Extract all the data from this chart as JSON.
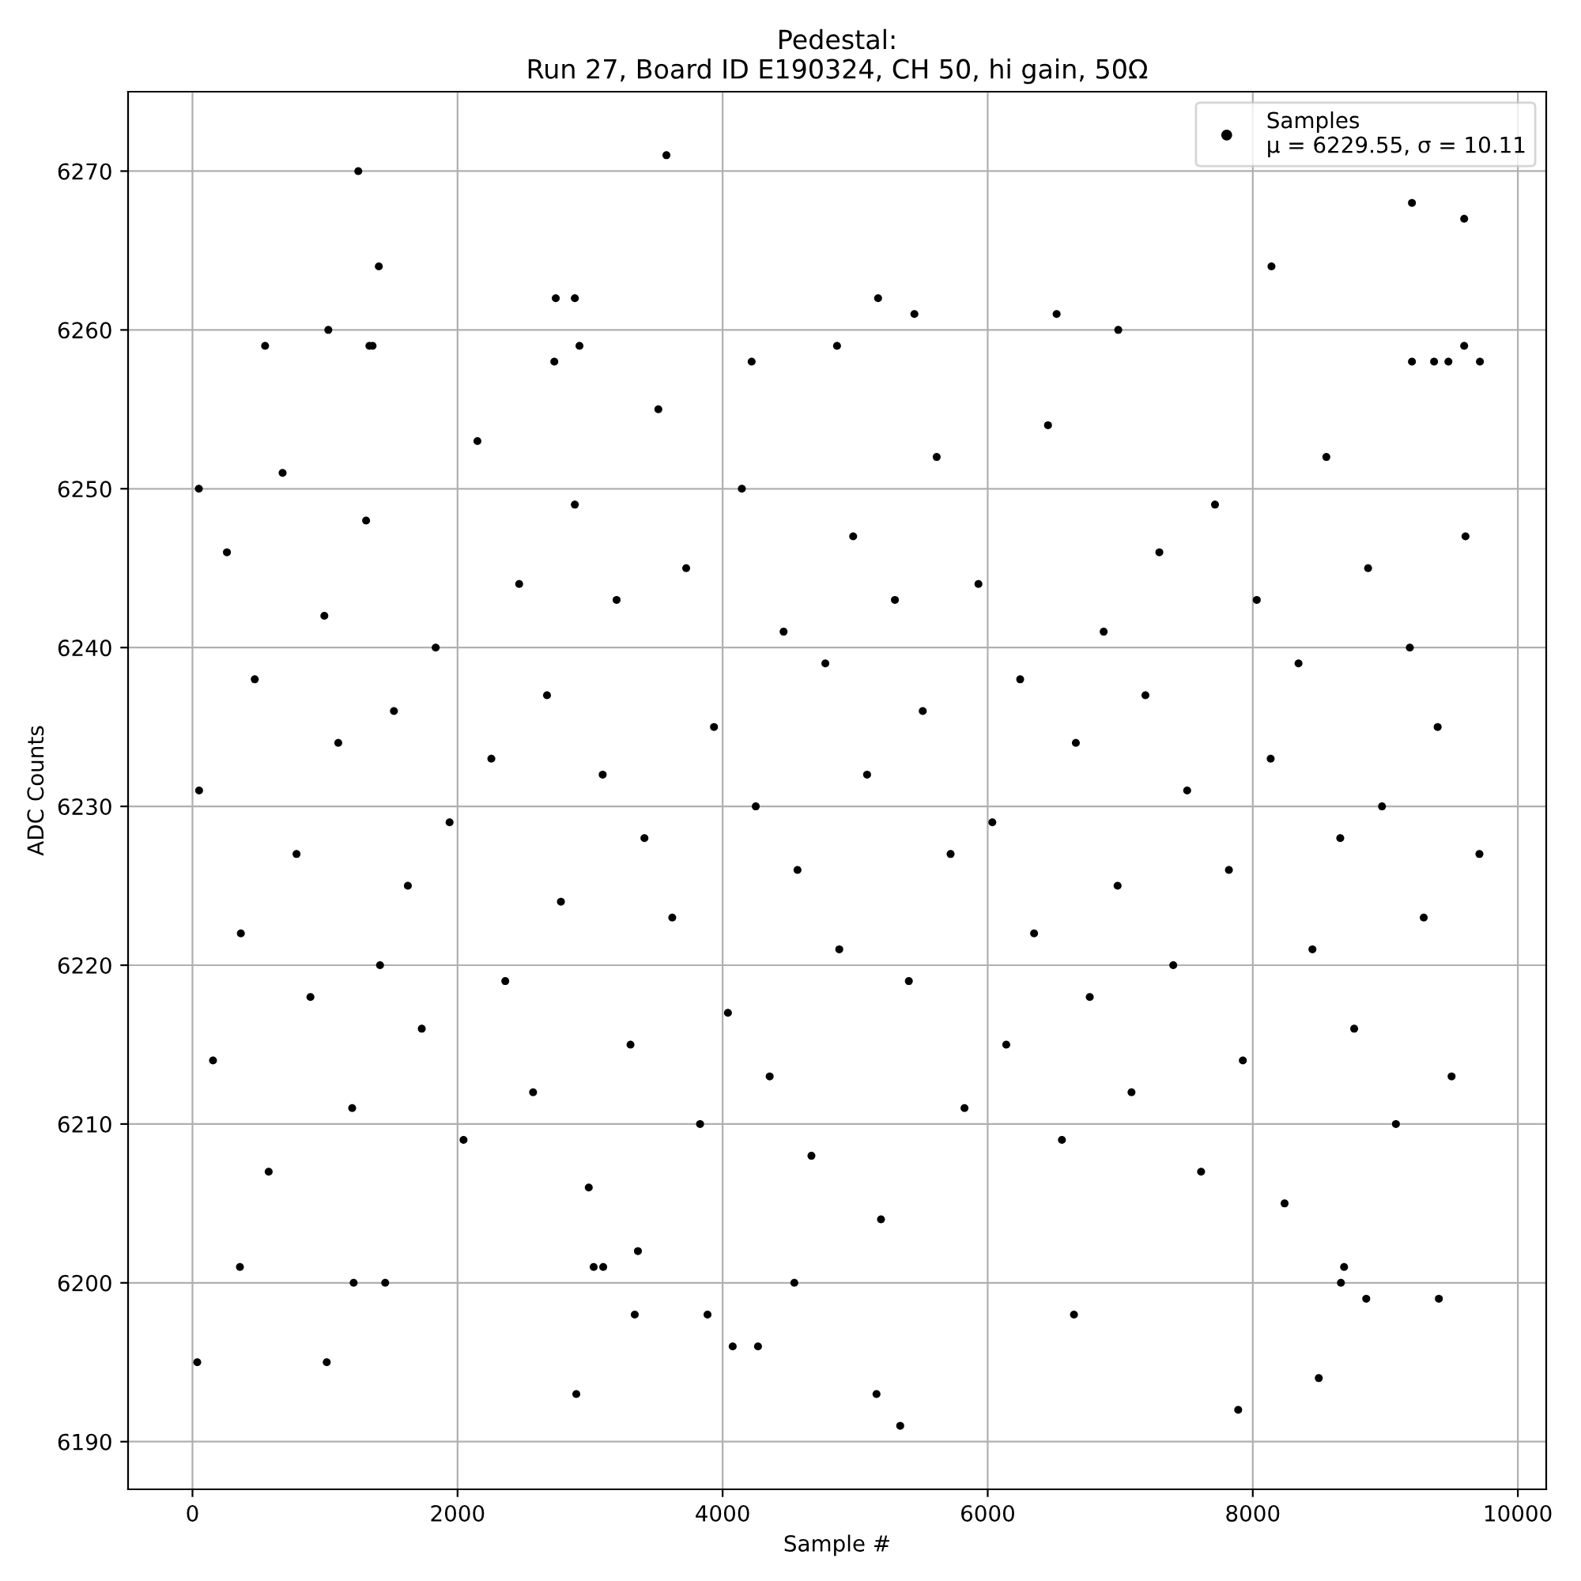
{
  "chart_data": {
    "type": "scatter",
    "title": "Pedestal:",
    "subtitle": "Run 27, Board ID E190324, CH 50, hi gain, 50Ω",
    "xlabel": "Sample #",
    "ylabel": "ADC Counts",
    "xlim": [
      -486,
      10214
    ],
    "ylim": [
      6187,
      6275
    ],
    "xticks": [
      0,
      2000,
      4000,
      6000,
      8000,
      10000
    ],
    "yticks": [
      6190,
      6200,
      6210,
      6220,
      6230,
      6240,
      6250,
      6260,
      6270
    ],
    "grid": true,
    "legend": "top right",
    "marker": "circle",
    "series": [
      {
        "name": "Samples\nμ = 6229.55, σ = 10.11",
        "color": "#000000",
        "x": [
          36,
          1013,
          1216,
          1454,
          2896,
          3337,
          3886,
          4076,
          4267,
          4541,
          358,
          3027,
          3099,
          3361,
          5161,
          5340,
          6651,
          7890,
          8498,
          8665,
          8689,
          8856,
          9404,
          1251,
          1406,
          3576,
          2741,
          2885,
          1025,
          548,
          1335,
          1359,
          2920,
          2730,
          4219,
          5173,
          5447,
          6520,
          6985,
          8141,
          9201,
          9595,
          9595,
          4863,
          9201,
          9368,
          9476,
          9714,
          48,
          50,
          155,
          260,
          365,
          470,
          575,
          680,
          785,
          890,
          995,
          1100,
          1205,
          1310,
          1415,
          1520,
          1625,
          1730,
          1835,
          1940,
          2045,
          2150,
          2255,
          2360,
          2465,
          2570,
          2675,
          2780,
          2885,
          2990,
          3095,
          3200,
          3305,
          3410,
          3515,
          3620,
          3725,
          3830,
          3935,
          4040,
          4145,
          4250,
          4355,
          4460,
          4565,
          4670,
          4775,
          4880,
          4985,
          5090,
          5195,
          5300,
          5405,
          5510,
          5615,
          5720,
          5825,
          5930,
          6035,
          6140,
          6245,
          6350,
          6455,
          6560,
          6665,
          6770,
          6875,
          6980,
          7085,
          7190,
          7295,
          7400,
          7505,
          7610,
          7715,
          7820,
          7925,
          8030,
          8135,
          8240,
          8345,
          8450,
          8555,
          8660,
          8765,
          8870,
          8975,
          9080,
          9185,
          9290,
          9395,
          9500,
          9605,
          9710
        ],
        "values": [
          6195,
          6195,
          6200,
          6200,
          6193,
          6198,
          6198,
          6196,
          6196,
          6200,
          6201,
          6201,
          6201,
          6202,
          6193,
          6191,
          6198,
          6192,
          6194,
          6200,
          6201,
          6199,
          6199,
          6270,
          6264,
          6271,
          6262,
          6262,
          6260,
          6259,
          6259,
          6259,
          6259,
          6258,
          6258,
          6262,
          6261,
          6261,
          6260,
          6264,
          6268,
          6267,
          6259,
          6259,
          6258,
          6258,
          6258,
          6258,
          6250,
          6231,
          6214,
          6246,
          6222,
          6238,
          6207,
          6251,
          6227,
          6218,
          6242,
          6234,
          6211,
          6248,
          6220,
          6236,
          6225,
          6216,
          6240,
          6229,
          6209,
          6253,
          6233,
          6219,
          6244,
          6212,
          6237,
          6224,
          6249,
          6206,
          6232,
          6243,
          6215,
          6228,
          6255,
          6223,
          6245,
          6210,
          6235,
          6217,
          6250,
          6230,
          6213,
          6241,
          6226,
          6208,
          6239,
          6221,
          6247,
          6232,
          6204,
          6243,
          6219,
          6236,
          6252,
          6227,
          6211,
          6244,
          6229,
          6215,
          6238,
          6222,
          6254,
          6209,
          6234,
          6218,
          6241,
          6225,
          6212,
          6237,
          6246,
          6220,
          6231,
          6207,
          6249,
          6226,
          6214,
          6243,
          6233,
          6205,
          6239,
          6221,
          6252,
          6228,
          6216,
          6245,
          6230,
          6210,
          6240,
          6223,
          6235,
          6213,
          6247,
          6227
        ]
      }
    ]
  }
}
